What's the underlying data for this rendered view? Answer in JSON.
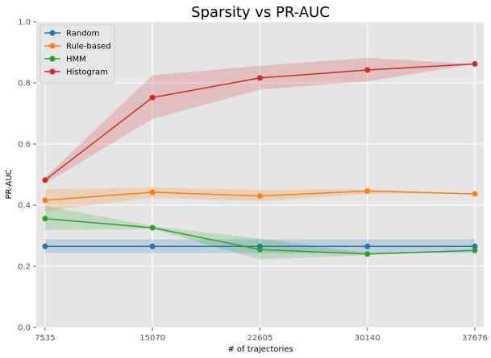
{
  "chart_data": {
    "type": "line",
    "title": "Sparsity vs PR-AUC",
    "xlabel": "# of trajectories",
    "ylabel": "PR-AUC",
    "x": [
      7535,
      15070,
      22605,
      30140,
      37676
    ],
    "x_tick_labels": [
      "7535",
      "15070",
      "22605",
      "30140",
      "37676"
    ],
    "ylim": [
      0.0,
      1.0
    ],
    "y_ticks": [
      0.0,
      0.2,
      0.4,
      0.6,
      0.8,
      1.0
    ],
    "y_tick_labels": [
      "0.0",
      "0.2",
      "0.4",
      "0.6",
      "0.8",
      "1.0"
    ],
    "grid": true,
    "legend_position": "top-left",
    "background_color": "#e5e5e5",
    "series": [
      {
        "name": "Random",
        "color": "#1f77b4",
        "values": [
          0.265,
          0.265,
          0.265,
          0.265,
          0.265
        ],
        "lower": [
          0.243,
          0.243,
          0.243,
          0.243,
          0.243
        ],
        "upper": [
          0.288,
          0.288,
          0.288,
          0.288,
          0.288
        ]
      },
      {
        "name": "Rule-based",
        "color": "#ff7f0e",
        "values": [
          0.416,
          0.442,
          0.43,
          0.446,
          0.437
        ],
        "lower": [
          0.38,
          0.425,
          0.413,
          0.437,
          0.437
        ],
        "upper": [
          0.452,
          0.458,
          0.45,
          0.452,
          0.437
        ]
      },
      {
        "name": "HMM",
        "color": "#2ca02c",
        "values": [
          0.356,
          0.326,
          0.255,
          0.24,
          0.252
        ],
        "lower": [
          0.318,
          0.322,
          0.222,
          0.237,
          0.252
        ],
        "upper": [
          0.398,
          0.332,
          0.29,
          0.245,
          0.252
        ]
      },
      {
        "name": "Histogram",
        "color": "#d62728",
        "values": [
          0.482,
          0.752,
          0.816,
          0.842,
          0.862
        ],
        "lower": [
          0.47,
          0.682,
          0.778,
          0.805,
          0.862
        ],
        "upper": [
          0.49,
          0.825,
          0.856,
          0.882,
          0.862
        ]
      }
    ]
  }
}
